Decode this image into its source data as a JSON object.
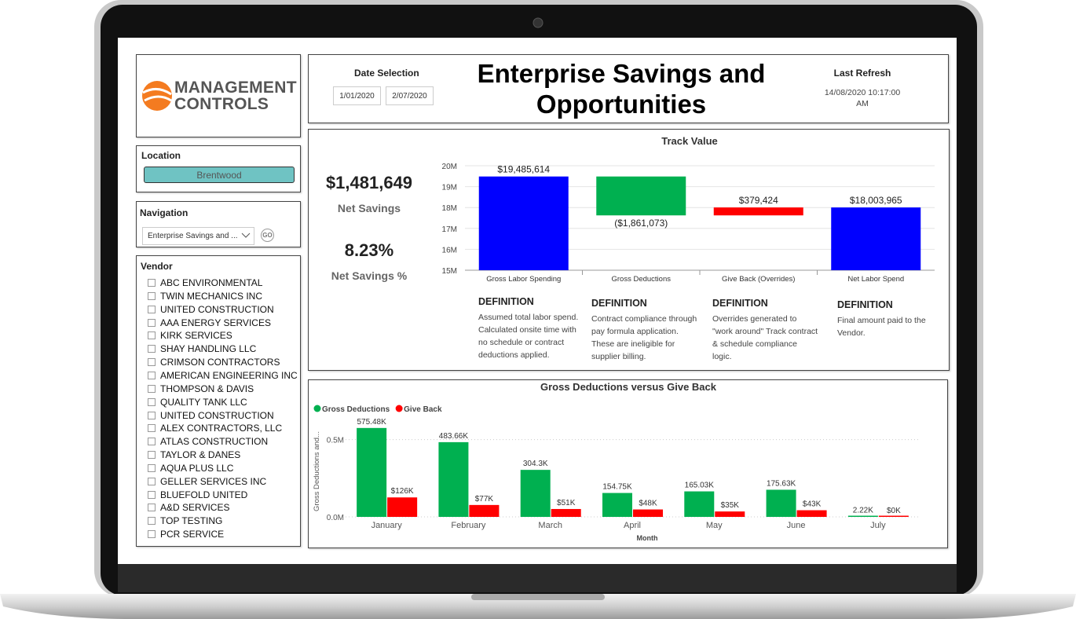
{
  "logo": {
    "line1": "MANAGEMENT",
    "line2": "CONTROLS"
  },
  "header": {
    "date_selection": {
      "label": "Date Selection",
      "start": "1/01/2020",
      "end": "2/07/2020"
    },
    "title": "Enterprise Savings and Opportunities",
    "last_refresh": {
      "label": "Last Refresh",
      "value": "14/08/2020 10:17:00 AM"
    }
  },
  "location": {
    "label": "Location",
    "value": "Brentwood"
  },
  "navigation": {
    "label": "Navigation",
    "value": "Enterprise Savings and ...",
    "button": "GO"
  },
  "vendor": {
    "label": "Vendor",
    "items": [
      "ABC ENVIRONMENTAL",
      "TWIN MECHANICS INC",
      "UNITED CONSTRUCTION",
      "AAA ENERGY SERVICES",
      "KIRK SERVICES",
      "SHAY HANDLING LLC",
      "CRIMSON CONTRACTORS",
      "AMERICAN ENGINEERING INC",
      "THOMPSON & DAVIS",
      "QUALITY TANK LLC",
      "UNITED CONSTRUCTION",
      "ALEX CONTRACTORS, LLC",
      "ATLAS CONSTRUCTION",
      "TAYLOR & DANES",
      "AQUA PLUS LLC",
      "GELLER SERVICES INC",
      "BLUEFOLD UNITED",
      "A&D SERVICES",
      "TOP TESTING",
      "PCR SERVICE"
    ]
  },
  "kpis": [
    {
      "value": "$1,481,649",
      "label": "Net Savings"
    },
    {
      "value": "8.23%",
      "label": "Net Savings %"
    }
  ],
  "definitions": [
    {
      "heading": "DEFINITION",
      "text": "Assumed total labor spend. Calculated onsite time with no schedule or contract deductions applied."
    },
    {
      "heading": "DEFINITION",
      "text": "Contract compliance through pay formula application. These are ineligible for supplier billing."
    },
    {
      "heading": "DEFINITION",
      "text": "Overrides generated to \"work around\" Track contract & schedule compliance logic."
    },
    {
      "heading": "DEFINITION",
      "text": "Final amount paid to the Vendor."
    }
  ],
  "chart_data": [
    {
      "type": "waterfall",
      "title": "Track Value",
      "categories": [
        "Gross Labor Spending",
        "Gross Deductions",
        "Give Back (Overrides)",
        "Net Labor Spend"
      ],
      "values": [
        19485614,
        -1861073,
        379424,
        18003965
      ],
      "value_labels": [
        "$19,485,614",
        "($1,861,073)",
        "$379,424",
        "$18,003,965"
      ],
      "totals": [
        true,
        false,
        false,
        true
      ],
      "colors": [
        "#0000ff",
        "#00b050",
        "#ff0000",
        "#0000ff"
      ],
      "ylim": [
        15000000,
        20000000
      ],
      "yticks": [
        {
          "value": 15000000,
          "label": "15M"
        },
        {
          "value": 16000000,
          "label": "16M"
        },
        {
          "value": 17000000,
          "label": "17M"
        },
        {
          "value": 18000000,
          "label": "18M"
        },
        {
          "value": 19000000,
          "label": "19M"
        },
        {
          "value": 20000000,
          "label": "20M"
        }
      ],
      "grid": true
    },
    {
      "type": "bar",
      "title": "Gross Deductions versus Give Back",
      "x_label": "Month",
      "y_label": "Gross Deductions and...",
      "categories": [
        "January",
        "February",
        "March",
        "April",
        "May",
        "June",
        "July"
      ],
      "series": [
        {
          "name": "Gross Deductions",
          "color": "#00b050",
          "values": [
            575480,
            483660,
            304300,
            154750,
            165030,
            175630,
            2220
          ],
          "value_labels": [
            "575.48K",
            "483.66K",
            "304.3K",
            "154.75K",
            "165.03K",
            "175.63K",
            "2.22K"
          ]
        },
        {
          "name": "Give Back",
          "color": "#ff0000",
          "values": [
            126000,
            77000,
            51000,
            48000,
            35000,
            43000,
            0
          ],
          "value_labels": [
            "$126K",
            "$77K",
            "$51K",
            "$48K",
            "$35K",
            "$43K",
            "$0K"
          ]
        }
      ],
      "ylim": [
        0,
        600000
      ],
      "yticks": [
        {
          "value": 0,
          "label": "0.0M"
        },
        {
          "value": 500000,
          "label": "0.5M"
        }
      ],
      "legend": "top-left",
      "grid": true
    }
  ]
}
